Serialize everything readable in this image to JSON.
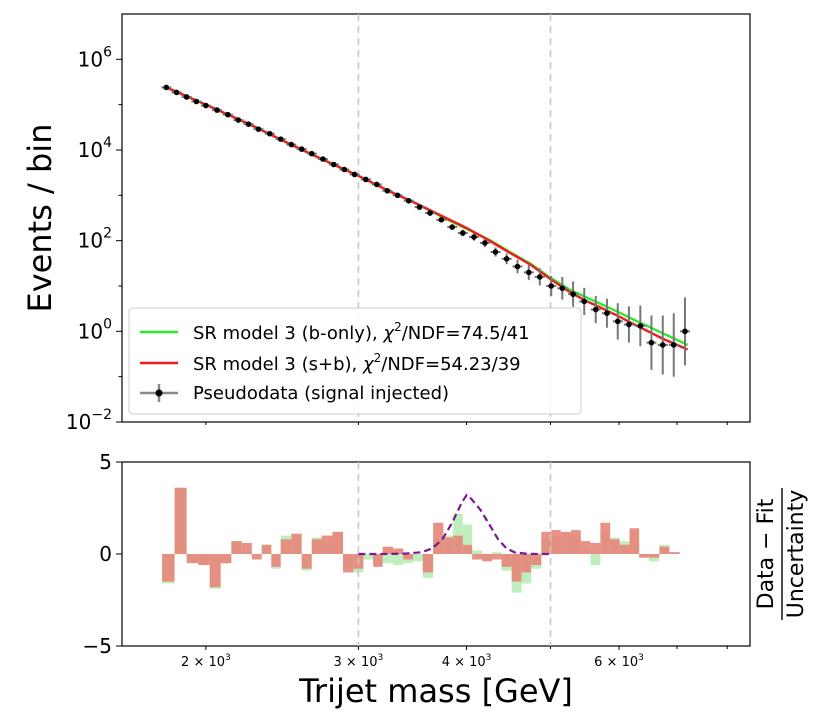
{
  "chart_data": [
    {
      "type": "line",
      "panel": "main",
      "xlabel": "",
      "ylabel": "Events / bin",
      "yscale": "log",
      "ylim_exp": [
        -2,
        7
      ],
      "xscale": "log",
      "xlim": [
        1600,
        8500
      ],
      "y_tick_labels": [
        {
          "base": "10",
          "exp": "6"
        },
        {
          "base": "10",
          "exp": "4"
        },
        {
          "base": "10",
          "exp": "2"
        },
        {
          "base": "10",
          "exp": "0"
        },
        {
          "base": "10",
          "exp": "−2"
        }
      ],
      "vlines": [
        3000,
        5000
      ],
      "legend": {
        "placement": "lower-left",
        "entries": [
          {
            "id": "bonly",
            "prefix": "SR model 3 (b-only), ",
            "chi": "χ",
            "sup": "2",
            "suffix": "/NDF=74.5/41",
            "color": "#2ee82e"
          },
          {
            "id": "sb",
            "prefix": "SR model 3 (s+b), ",
            "chi": "χ",
            "sup": "2",
            "suffix": "/NDF=54.23/39",
            "color": "#ee1c1c"
          },
          {
            "id": "pd",
            "prefix": "Pseudodata (signal injected)",
            "chi": "",
            "sup": "",
            "suffix": "",
            "color": "#000000"
          }
        ]
      },
      "series": [
        {
          "name": "Pseudodata (signal injected)",
          "kind": "errorbar",
          "x": [
            1800,
            1850,
            1900,
            1950,
            2000,
            2060,
            2120,
            2180,
            2240,
            2300,
            2370,
            2440,
            2510,
            2580,
            2650,
            2730,
            2810,
            2890,
            2970,
            3060,
            3150,
            3240,
            3330,
            3430,
            3530,
            3630,
            3740,
            3850,
            3960,
            4080,
            4200,
            4320,
            4450,
            4580,
            4720,
            4860,
            5010,
            5160,
            5310,
            5470,
            5640,
            5810,
            5980,
            6160,
            6350,
            6540,
            6740,
            6940,
            7150
          ],
          "log10y": [
            5.38,
            5.27,
            5.17,
            5.07,
            4.98,
            4.88,
            4.78,
            4.66,
            4.57,
            4.46,
            4.36,
            4.24,
            4.12,
            4.02,
            3.92,
            3.8,
            3.68,
            3.57,
            3.46,
            3.35,
            3.24,
            3.1,
            3.0,
            2.88,
            2.74,
            2.61,
            2.46,
            2.3,
            2.17,
            2.08,
            1.95,
            1.75,
            1.6,
            1.43,
            1.3,
            1.2,
            1.0,
            0.95,
            0.82,
            0.66,
            0.48,
            0.4,
            0.22,
            0.15,
            0.12,
            -0.25,
            -0.3,
            -0.3,
            0.0
          ],
          "log10err": [
            0.01,
            0.01,
            0.01,
            0.01,
            0.01,
            0.01,
            0.01,
            0.01,
            0.01,
            0.01,
            0.01,
            0.01,
            0.01,
            0.01,
            0.01,
            0.02,
            0.02,
            0.02,
            0.02,
            0.02,
            0.02,
            0.03,
            0.03,
            0.03,
            0.04,
            0.04,
            0.05,
            0.06,
            0.07,
            0.08,
            0.09,
            0.1,
            0.12,
            0.15,
            0.17,
            0.19,
            0.22,
            0.25,
            0.28,
            0.3,
            0.3,
            0.32,
            0.4,
            0.4,
            0.45,
            0.6,
            0.65,
            0.7,
            0.75
          ]
        },
        {
          "name": "SR model 3 (b-only)",
          "kind": "line",
          "color": "#2ee82e",
          "x": [
            1800,
            2000,
            2250,
            2500,
            2750,
            3000,
            3250,
            3500,
            3750,
            4000,
            4250,
            4500,
            4750,
            5000,
            5250,
            5500,
            5750,
            6000,
            6250,
            6500,
            6750,
            7000,
            7200
          ],
          "log10y": [
            5.38,
            5.0,
            4.56,
            4.13,
            3.76,
            3.43,
            3.1,
            2.82,
            2.52,
            2.26,
            2.02,
            1.74,
            1.48,
            1.18,
            0.93,
            0.75,
            0.58,
            0.42,
            0.25,
            0.1,
            -0.05,
            -0.19,
            -0.3
          ]
        },
        {
          "name": "SR model 3 (s+b)",
          "kind": "line",
          "color": "#ee1c1c",
          "x": [
            1800,
            2000,
            2250,
            2500,
            2750,
            3000,
            3250,
            3500,
            3750,
            4000,
            4250,
            4500,
            4750,
            5000,
            5250,
            5500,
            5750,
            6000,
            6250,
            6500,
            6750,
            7000,
            7200
          ],
          "log10y": [
            5.38,
            5.0,
            4.56,
            4.13,
            3.76,
            3.43,
            3.1,
            2.82,
            2.54,
            2.28,
            2.0,
            1.72,
            1.46,
            1.15,
            0.88,
            0.67,
            0.5,
            0.33,
            0.15,
            -0.01,
            -0.17,
            -0.3,
            -0.4
          ]
        }
      ]
    },
    {
      "type": "bar",
      "panel": "ratio",
      "xlabel": "Trijet mass [GeV]",
      "ylabel_num": "Data − Fit",
      "ylabel_den": "Uncertainty",
      "ylim": [
        -5,
        5
      ],
      "y_ticks": [
        "5",
        "0",
        "−5"
      ],
      "x_tick_labels": [
        {
          "value": 2000,
          "base": "2 × 10",
          "exp": "3"
        },
        {
          "value": 3000,
          "base": "3 × 10",
          "exp": "3"
        },
        {
          "value": 4000,
          "base": "4 × 10",
          "exp": "3"
        },
        {
          "value": 6000,
          "base": "6 × 10",
          "exp": "3"
        }
      ],
      "vlines": [
        3000,
        5000
      ],
      "bin_edges": [
        1780,
        1840,
        1900,
        1960,
        2020,
        2080,
        2140,
        2200,
        2260,
        2320,
        2380,
        2440,
        2510,
        2580,
        2650,
        2720,
        2800,
        2880,
        2960,
        3040,
        3120,
        3200,
        3290,
        3380,
        3470,
        3560,
        3660,
        3760,
        3860,
        3960,
        4060,
        4170,
        4280,
        4390,
        4510,
        4630,
        4750,
        4880,
        5010,
        5140,
        5280,
        5420,
        5560,
        5710,
        5860,
        6010,
        6170,
        6330,
        6500,
        6680,
        6860,
        7050
      ],
      "series": [
        {
          "name": "b-only pulls",
          "color": "#b4ecb4",
          "values": [
            -1.6,
            3.6,
            -0.4,
            -0.6,
            -1.9,
            -0.5,
            0.7,
            0.2,
            -0.1,
            0.5,
            -0.8,
            1.0,
            1.1,
            -0.9,
            0.9,
            0.8,
            1.2,
            -0.8,
            -1.0,
            -0.3,
            -0.6,
            -0.5,
            -0.6,
            -0.5,
            -0.4,
            -1.3,
            0.8,
            1.0,
            2.2,
            1.6,
            0.2,
            -0.3,
            0.1,
            -0.9,
            -2.1,
            -1.6,
            -0.8,
            0.9,
            1.0,
            1.1,
            1.0,
            0.3,
            -0.6,
            1.2,
            0.9,
            0.7,
            1.3,
            -0.1,
            -0.4,
            0.5,
            0.1
          ]
        },
        {
          "name": "s+b pulls",
          "color": "#e8857a",
          "values": [
            -1.5,
            3.6,
            -0.5,
            -0.6,
            -1.8,
            -0.5,
            0.7,
            0.6,
            -0.3,
            0.5,
            -0.7,
            0.8,
            1.1,
            -0.8,
            0.8,
            1.0,
            1.2,
            -1.0,
            -0.8,
            0.0,
            -0.7,
            0.4,
            0.3,
            -0.3,
            0.0,
            -1.0,
            1.7,
            0.9,
            1.0,
            0.5,
            -0.3,
            -0.4,
            -0.3,
            -0.7,
            -1.5,
            -1.0,
            -0.6,
            1.2,
            1.3,
            1.2,
            1.3,
            0.7,
            0.6,
            1.7,
            0.8,
            0.5,
            1.4,
            -0.2,
            -0.2,
            0.4,
            0.1
          ]
        },
        {
          "name": "signal template",
          "kind": "line",
          "color": "#7b1a8c",
          "style": "dashed",
          "x": [
            3000,
            3200,
            3400,
            3550,
            3650,
            3750,
            3850,
            3950,
            4000,
            4050,
            4150,
            4250,
            4350,
            4450,
            4550,
            4700,
            4900,
            5000
          ],
          "values": [
            0.0,
            0.0,
            0.02,
            0.1,
            0.3,
            0.8,
            1.7,
            2.8,
            3.2,
            3.0,
            2.4,
            1.6,
            0.8,
            0.3,
            0.08,
            0.01,
            0.0,
            0.0
          ]
        }
      ]
    }
  ]
}
